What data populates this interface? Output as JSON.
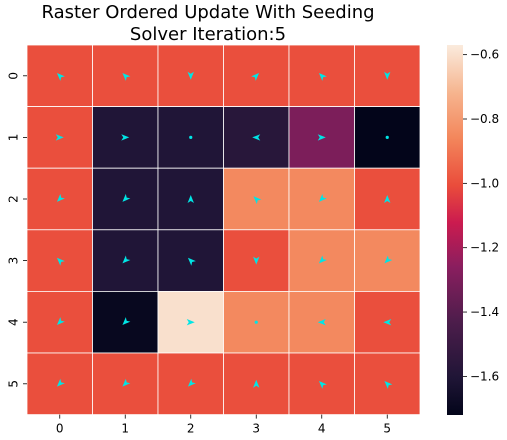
{
  "chart_data": {
    "type": "heatmap",
    "title": "Raster Ordered Update With Seeding",
    "subtitle": "Solver Iteration:5",
    "x_ticks": [
      "0",
      "1",
      "2",
      "3",
      "4",
      "5"
    ],
    "y_ticks": [
      "0",
      "1",
      "2",
      "3",
      "4",
      "5"
    ],
    "values": [
      [
        -1.0,
        -1.0,
        -1.0,
        -1.0,
        -1.0,
        -1.0
      ],
      [
        -1.0,
        -1.6,
        -1.6,
        -1.57,
        -1.3,
        -1.72
      ],
      [
        -1.0,
        -1.6,
        -1.6,
        -0.85,
        -0.85,
        -1.0
      ],
      [
        -1.0,
        -1.6,
        -1.6,
        -1.0,
        -0.85,
        -0.85
      ],
      [
        -1.0,
        -1.7,
        -0.6,
        -0.85,
        -0.85,
        -1.0
      ],
      [
        -1.0,
        -1.0,
        -1.0,
        -1.0,
        -1.0,
        -1.0
      ]
    ],
    "arrows": [
      [
        [
          -1,
          1
        ],
        [
          -1,
          1
        ],
        [
          0,
          -1
        ],
        [
          1,
          1
        ],
        [
          -1,
          1
        ],
        [
          0,
          -1
        ]
      ],
      [
        [
          1,
          0
        ],
        [
          1,
          0
        ],
        [
          0,
          0
        ],
        [
          -1,
          0
        ],
        [
          1,
          0
        ],
        [
          0,
          0
        ]
      ],
      [
        [
          -1,
          -1
        ],
        [
          -1,
          -1
        ],
        [
          0,
          1
        ],
        [
          -1,
          1
        ],
        [
          -1,
          -1
        ],
        [
          0,
          1
        ]
      ],
      [
        [
          -1,
          1
        ],
        [
          -1,
          -1
        ],
        [
          -1,
          1
        ],
        [
          0,
          -1
        ],
        [
          -1,
          -1
        ],
        [
          -1,
          -1
        ]
      ],
      [
        [
          -1,
          -1
        ],
        [
          -1,
          -1
        ],
        [
          1,
          0
        ],
        [
          0,
          0
        ],
        [
          -1,
          0
        ],
        [
          -1,
          0
        ]
      ],
      [
        [
          -1,
          -1
        ],
        [
          -1,
          -1
        ],
        [
          -1,
          -1
        ],
        [
          0,
          1
        ],
        [
          -1,
          1
        ],
        [
          -1,
          1
        ]
      ]
    ],
    "arrow_color": "#00e5e5",
    "grid_line_color": "#ffffff",
    "colorbar": {
      "ticks": [
        "−0.6",
        "−0.8",
        "−1.0",
        "−1.2",
        "−1.4",
        "−1.6"
      ],
      "tick_values": [
        -0.6,
        -0.8,
        -1.0,
        -1.2,
        -1.4,
        -1.6
      ],
      "vmin": -1.72,
      "vmax": -0.57,
      "colormap": "rocket"
    }
  }
}
